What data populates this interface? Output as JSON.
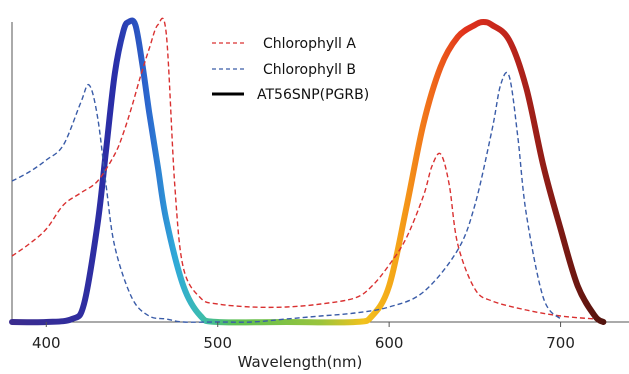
{
  "chart_data": {
    "type": "line",
    "title": "",
    "xlabel": "Wavelength(nm)",
    "ylabel": "",
    "xlim": [
      380,
      730
    ],
    "ylim": [
      0,
      1.0
    ],
    "xticks": [
      400,
      500,
      600,
      700
    ],
    "grid": false,
    "legend_position": "top-center",
    "series": [
      {
        "name": "Chlorophyll A",
        "style": "dashed",
        "color": "#d93030",
        "x": [
          380,
          390,
          400,
          410,
          420,
          430,
          440,
          445,
          450,
          455,
          460,
          465,
          470,
          475,
          480,
          490,
          500,
          520,
          540,
          560,
          580,
          590,
          600,
          610,
          620,
          625,
          630,
          635,
          640,
          650,
          660,
          680,
          700,
          720
        ],
        "y": [
          0.22,
          0.26,
          0.31,
          0.39,
          0.43,
          0.47,
          0.56,
          0.63,
          0.72,
          0.82,
          0.91,
          0.99,
          0.96,
          0.45,
          0.18,
          0.08,
          0.06,
          0.05,
          0.05,
          0.06,
          0.08,
          0.12,
          0.19,
          0.28,
          0.42,
          0.52,
          0.56,
          0.46,
          0.26,
          0.11,
          0.07,
          0.04,
          0.02,
          0.01
        ]
      },
      {
        "name": "Chlorophyll B",
        "style": "dashed",
        "color": "#3a5ca8",
        "x": [
          380,
          390,
          400,
          410,
          420,
          425,
          430,
          435,
          440,
          450,
          460,
          470,
          480,
          500,
          520,
          540,
          560,
          580,
          600,
          620,
          640,
          650,
          660,
          665,
          670,
          675,
          680,
          690,
          700
        ],
        "y": [
          0.47,
          0.5,
          0.54,
          0.59,
          0.73,
          0.79,
          0.68,
          0.45,
          0.25,
          0.08,
          0.02,
          0.01,
          0.0,
          0.0,
          0.0,
          0.01,
          0.02,
          0.03,
          0.05,
          0.1,
          0.24,
          0.39,
          0.64,
          0.79,
          0.82,
          0.62,
          0.36,
          0.08,
          0.01
        ]
      },
      {
        "name": "AT56SNP(PGRB)",
        "style": "solid",
        "color": "spectrum",
        "x": [
          380,
          400,
          415,
          422,
          430,
          435,
          440,
          445,
          448,
          452,
          456,
          460,
          465,
          470,
          480,
          490,
          500,
          540,
          580,
          590,
          600,
          610,
          620,
          630,
          640,
          650,
          655,
          660,
          670,
          680,
          690,
          700,
          710,
          720,
          725
        ],
        "y": [
          0.0,
          0.0,
          0.01,
          0.06,
          0.33,
          0.58,
          0.83,
          0.97,
          1.0,
          0.99,
          0.86,
          0.7,
          0.52,
          0.34,
          0.12,
          0.02,
          0.0,
          0.0,
          0.0,
          0.02,
          0.12,
          0.38,
          0.66,
          0.85,
          0.95,
          0.99,
          1.0,
          0.99,
          0.94,
          0.78,
          0.52,
          0.31,
          0.12,
          0.02,
          0.0
        ]
      }
    ]
  },
  "legend": [
    {
      "label": "Chlorophyll A",
      "line": "dashed",
      "color": "#d93030"
    },
    {
      "label": "Chlorophyll B",
      "line": "dashed",
      "color": "#3a5ca8"
    },
    {
      "label": "AT56SNP(PGRB)",
      "line": "solid",
      "color": "#000000"
    }
  ]
}
